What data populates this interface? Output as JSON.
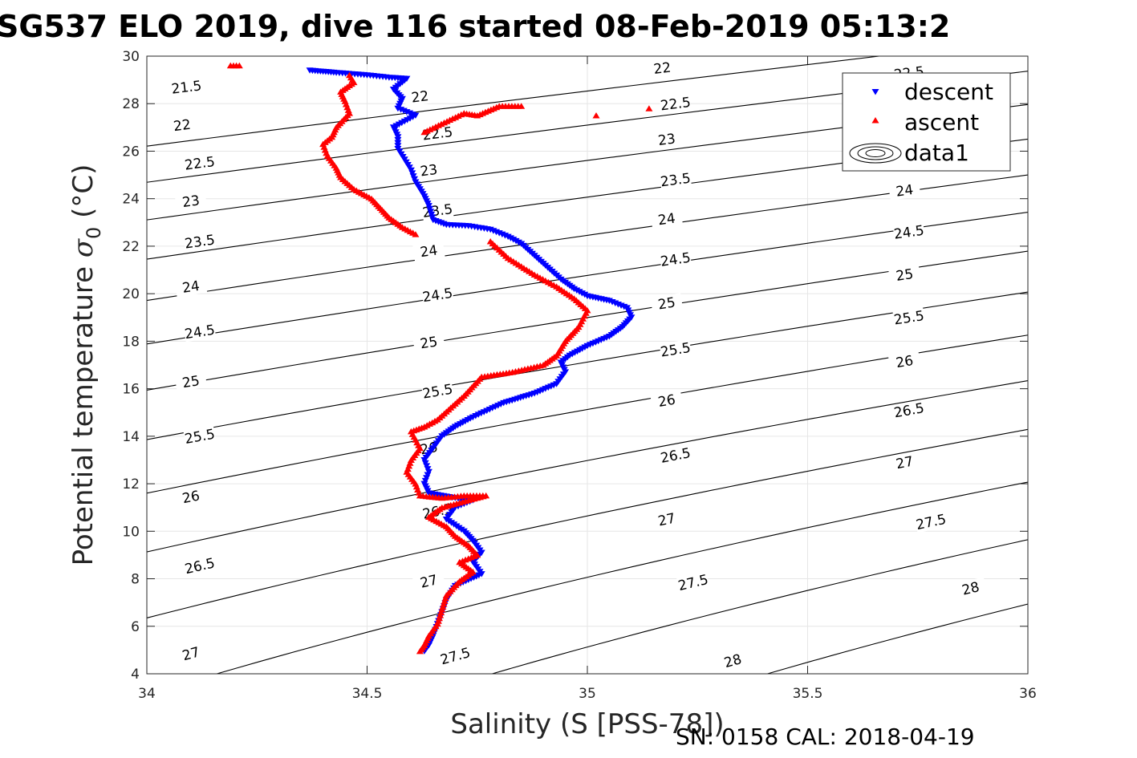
{
  "title": "SG537 ELO 2019, dive 116 started 08-Feb-2019 05:13:2",
  "footer": "SN: 0158  CAL: 2018-04-19",
  "chart_data": {
    "type": "scatter",
    "xlabel": "Salinity (S [PSS-78])",
    "ylabel_text": "Potential temperature ",
    "ylabel_symbol": "σ",
    "ylabel_subscript": "0",
    "ylabel_unit": " (°C)",
    "xlim": [
      34,
      36
    ],
    "ylim": [
      4,
      30
    ],
    "xticks": [
      34,
      34.5,
      35,
      35.5,
      36
    ],
    "xtick_labels": [
      "34",
      "34.5",
      "35",
      "35.5",
      "36"
    ],
    "yticks": [
      4,
      6,
      8,
      10,
      12,
      14,
      16,
      18,
      20,
      22,
      24,
      26,
      28,
      30
    ],
    "ytick_labels": [
      "4",
      "6",
      "8",
      "10",
      "12",
      "14",
      "16",
      "18",
      "20",
      "22",
      "24",
      "26",
      "28",
      "30"
    ],
    "grid": true,
    "legend": {
      "position": "top-right",
      "entries": [
        {
          "label": "descent",
          "color": "#0000ff",
          "marker": "triangle-down"
        },
        {
          "label": "ascent",
          "color": "#ff0000",
          "marker": "triangle-up"
        },
        {
          "label": "data1",
          "color": "#000000",
          "marker": "contour"
        }
      ]
    },
    "contours": {
      "levels": [
        21.5,
        22,
        22.5,
        23,
        23.5,
        24,
        24.5,
        25,
        25.5,
        26,
        26.5,
        27,
        27.5,
        28
      ],
      "level_labels": [
        "21.5",
        "22",
        "22.5",
        "23",
        "23.5",
        "24",
        "24.5",
        "25",
        "25.5",
        "26",
        "26.5",
        "27",
        "27.5",
        "28"
      ],
      "labels": [
        {
          "text": "21.5",
          "s": 34.09,
          "t": 28.7
        },
        {
          "text": "22",
          "s": 34.08,
          "t": 27.1
        },
        {
          "text": "22",
          "s": 34.62,
          "t": 28.3
        },
        {
          "text": "22",
          "s": 35.17,
          "t": 29.5
        },
        {
          "text": "22.5",
          "s": 34.12,
          "t": 25.5
        },
        {
          "text": "22.5",
          "s": 34.66,
          "t": 26.75
        },
        {
          "text": "22.5",
          "s": 35.2,
          "t": 28.0
        },
        {
          "text": "22.5",
          "s": 35.73,
          "t": 29.3
        },
        {
          "text": "23",
          "s": 34.1,
          "t": 23.9
        },
        {
          "text": "23",
          "s": 34.64,
          "t": 25.2
        },
        {
          "text": "23",
          "s": 35.18,
          "t": 26.5
        },
        {
          "text": "23.5",
          "s": 34.12,
          "t": 22.2
        },
        {
          "text": "23.5",
          "s": 34.66,
          "t": 23.5
        },
        {
          "text": "23.5",
          "s": 35.2,
          "t": 24.8
        },
        {
          "text": "24",
          "s": 34.1,
          "t": 20.3
        },
        {
          "text": "24",
          "s": 34.64,
          "t": 21.8
        },
        {
          "text": "24",
          "s": 35.18,
          "t": 23.15
        },
        {
          "text": "24",
          "s": 35.72,
          "t": 24.35
        },
        {
          "text": "24.5",
          "s": 34.12,
          "t": 18.4
        },
        {
          "text": "24.5",
          "s": 34.66,
          "t": 19.95
        },
        {
          "text": "24.5",
          "s": 35.2,
          "t": 21.45
        },
        {
          "text": "24.5",
          "s": 35.73,
          "t": 22.6
        },
        {
          "text": "25",
          "s": 34.1,
          "t": 16.3
        },
        {
          "text": "25",
          "s": 34.64,
          "t": 17.95
        },
        {
          "text": "25",
          "s": 35.18,
          "t": 19.6
        },
        {
          "text": "25",
          "s": 35.72,
          "t": 20.8
        },
        {
          "text": "25.5",
          "s": 34.12,
          "t": 14.0
        },
        {
          "text": "25.5",
          "s": 34.66,
          "t": 15.9
        },
        {
          "text": "25.5",
          "s": 35.2,
          "t": 17.65
        },
        {
          "text": "25.5",
          "s": 35.73,
          "t": 19.0
        },
        {
          "text": "26",
          "s": 34.1,
          "t": 11.45
        },
        {
          "text": "26",
          "s": 34.64,
          "t": 13.5
        },
        {
          "text": "26",
          "s": 35.18,
          "t": 15.5
        },
        {
          "text": "26",
          "s": 35.72,
          "t": 17.15
        },
        {
          "text": "26.5",
          "s": 34.12,
          "t": 8.55
        },
        {
          "text": "26.5",
          "s": 34.66,
          "t": 10.85
        },
        {
          "text": "26.5",
          "s": 35.2,
          "t": 13.2
        },
        {
          "text": "26.5",
          "s": 35.73,
          "t": 15.1
        },
        {
          "text": "27",
          "s": 34.1,
          "t": 4.85
        },
        {
          "text": "27",
          "s": 34.64,
          "t": 7.9
        },
        {
          "text": "27",
          "s": 35.18,
          "t": 10.5
        },
        {
          "text": "27",
          "s": 35.72,
          "t": 12.9
        },
        {
          "text": "27.5",
          "s": 34.7,
          "t": 4.75
        },
        {
          "text": "27.5",
          "s": 35.24,
          "t": 7.85
        },
        {
          "text": "27.5",
          "s": 35.78,
          "t": 10.4
        },
        {
          "text": "28",
          "s": 35.33,
          "t": 4.55
        },
        {
          "text": "28",
          "s": 35.87,
          "t": 7.6
        }
      ]
    },
    "series": [
      {
        "name": "descent",
        "color": "#0000ff",
        "marker": "triangle-down",
        "points": [
          [
            34.37,
            29.4
          ],
          [
            34.4,
            29.35
          ],
          [
            34.43,
            29.3
          ],
          [
            34.5,
            29.2
          ],
          [
            34.55,
            29.1
          ],
          [
            34.59,
            29.05
          ],
          [
            34.56,
            28.6
          ],
          [
            34.58,
            28.2
          ],
          [
            34.57,
            27.8
          ],
          [
            34.61,
            27.5
          ],
          [
            34.56,
            27.0
          ],
          [
            34.57,
            26.6
          ],
          [
            34.57,
            26.1
          ],
          [
            34.6,
            25.2
          ],
          [
            34.61,
            24.7
          ],
          [
            34.63,
            24.1
          ],
          [
            34.64,
            23.7
          ],
          [
            34.65,
            23.1
          ],
          [
            34.68,
            22.9
          ],
          [
            34.73,
            22.85
          ],
          [
            34.78,
            22.7
          ],
          [
            34.82,
            22.4
          ],
          [
            34.85,
            22.1
          ],
          [
            34.88,
            21.6
          ],
          [
            34.91,
            21.1
          ],
          [
            34.94,
            20.6
          ],
          [
            34.97,
            20.2
          ],
          [
            35.0,
            19.9
          ],
          [
            35.05,
            19.7
          ],
          [
            35.09,
            19.4
          ],
          [
            35.1,
            19.0
          ],
          [
            35.08,
            18.6
          ],
          [
            35.05,
            18.2
          ],
          [
            35.0,
            17.8
          ],
          [
            34.96,
            17.4
          ],
          [
            34.94,
            17.1
          ],
          [
            34.95,
            16.7
          ],
          [
            34.93,
            16.2
          ],
          [
            34.88,
            15.8
          ],
          [
            34.81,
            15.4
          ],
          [
            34.74,
            14.8
          ],
          [
            34.7,
            14.4
          ],
          [
            34.67,
            14.0
          ],
          [
            34.65,
            13.5
          ],
          [
            34.63,
            13.0
          ],
          [
            34.64,
            12.5
          ],
          [
            34.63,
            12.0
          ],
          [
            34.64,
            11.6
          ],
          [
            34.7,
            11.4
          ],
          [
            34.74,
            11.3
          ],
          [
            34.7,
            11.0
          ],
          [
            34.68,
            10.5
          ],
          [
            34.72,
            10.0
          ],
          [
            34.74,
            9.6
          ],
          [
            34.76,
            9.1
          ],
          [
            34.74,
            8.7
          ],
          [
            34.76,
            8.2
          ],
          [
            34.7,
            7.7
          ],
          [
            34.68,
            7.1
          ],
          [
            34.67,
            6.6
          ],
          [
            34.66,
            6.1
          ],
          [
            34.65,
            5.6
          ],
          [
            34.64,
            5.2
          ],
          [
            34.63,
            4.95
          ]
        ]
      },
      {
        "name": "ascent",
        "color": "#ff0000",
        "marker": "triangle-up",
        "points": [
          [
            34.19,
            29.6
          ],
          [
            34.21,
            29.6
          ],
          [
            34.46,
            29.2
          ],
          [
            34.47,
            28.9
          ],
          [
            34.44,
            28.5
          ],
          [
            34.45,
            28.1
          ],
          [
            34.46,
            27.6
          ],
          [
            34.43,
            27.0
          ],
          [
            34.42,
            26.6
          ],
          [
            34.4,
            26.3
          ],
          [
            34.41,
            25.8
          ],
          [
            34.43,
            25.3
          ],
          [
            34.44,
            24.9
          ],
          [
            34.47,
            24.4
          ],
          [
            34.51,
            24.0
          ],
          [
            34.53,
            23.6
          ],
          [
            34.55,
            23.2
          ],
          [
            34.58,
            22.8
          ],
          [
            34.61,
            22.5
          ],
          [
            34.63,
            26.8
          ],
          [
            34.72,
            27.6
          ],
          [
            34.75,
            27.5
          ],
          [
            34.8,
            27.9
          ],
          [
            34.85,
            27.9
          ],
          [
            35.02,
            27.5
          ],
          [
            35.14,
            27.8
          ],
          [
            34.78,
            22.2
          ],
          [
            34.82,
            21.5
          ],
          [
            34.88,
            20.8
          ],
          [
            34.93,
            20.3
          ],
          [
            34.97,
            19.8
          ],
          [
            35.0,
            19.3
          ],
          [
            34.98,
            18.6
          ],
          [
            34.95,
            18.0
          ],
          [
            34.93,
            17.4
          ],
          [
            34.9,
            17.0
          ],
          [
            34.83,
            16.7
          ],
          [
            34.76,
            16.5
          ],
          [
            34.72,
            15.7
          ],
          [
            34.69,
            15.2
          ],
          [
            34.66,
            14.7
          ],
          [
            34.63,
            14.4
          ],
          [
            34.6,
            14.2
          ],
          [
            34.62,
            13.5
          ],
          [
            34.6,
            13.0
          ],
          [
            34.59,
            12.5
          ],
          [
            34.61,
            12.0
          ],
          [
            34.62,
            11.5
          ],
          [
            34.67,
            11.4
          ],
          [
            34.72,
            11.5
          ],
          [
            34.77,
            11.5
          ],
          [
            34.67,
            11.0
          ],
          [
            34.64,
            10.6
          ],
          [
            34.68,
            10.2
          ],
          [
            34.7,
            9.8
          ],
          [
            34.73,
            9.4
          ],
          [
            34.75,
            9.0
          ],
          [
            34.71,
            8.7
          ],
          [
            34.74,
            8.3
          ],
          [
            34.71,
            7.9
          ],
          [
            34.68,
            7.3
          ],
          [
            34.67,
            6.7
          ],
          [
            34.66,
            6.1
          ],
          [
            34.64,
            5.6
          ],
          [
            34.63,
            5.2
          ],
          [
            34.62,
            4.95
          ]
        ]
      }
    ]
  }
}
